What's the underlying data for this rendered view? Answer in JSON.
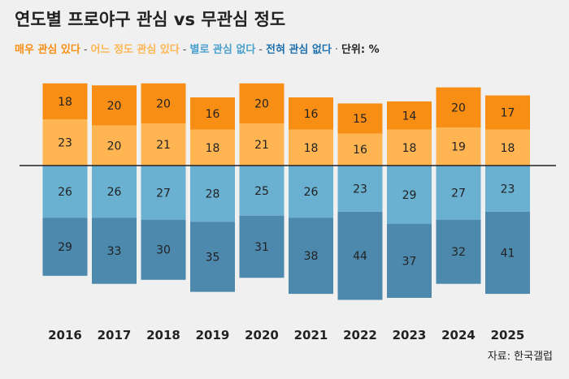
{
  "title": "연도별 프로야구 관심 vs 무관심 정도",
  "legend": {
    "very_interested": "매우 관심 있다",
    "somewhat_interested": "어느 정도 관심 있다",
    "not_very_interested": "별로 관심 없다",
    "not_at_all": "전혀 관심 없다",
    "unit": "단위: %"
  },
  "source": "자료: 한국갤럽",
  "colors": {
    "very_interested": "#f98e14",
    "somewhat_interested": "#ffb552",
    "not_very_interested": "#6ab0d0",
    "not_at_all": "#4d88ad",
    "legend_not_very": "#4aa0cc",
    "legend_not_at_all": "#1e6fae"
  },
  "chart_data": {
    "type": "bar",
    "subtype": "diverging-stacked",
    "categories": [
      "2016",
      "2017",
      "2018",
      "2019",
      "2020",
      "2021",
      "2022",
      "2023",
      "2024",
      "2025"
    ],
    "series": [
      {
        "name": "매우 관심 있다",
        "direction": "up",
        "values": [
          18,
          20,
          20,
          16,
          20,
          16,
          15,
          14,
          20,
          17
        ]
      },
      {
        "name": "어느 정도 관심 있다",
        "direction": "up",
        "values": [
          23,
          20,
          21,
          18,
          21,
          18,
          16,
          18,
          19,
          18
        ]
      },
      {
        "name": "별로 관심 없다",
        "direction": "down",
        "values": [
          26,
          26,
          27,
          28,
          25,
          26,
          23,
          29,
          27,
          23
        ]
      },
      {
        "name": "전혀 관심 없다",
        "direction": "down",
        "values": [
          29,
          33,
          30,
          35,
          31,
          38,
          44,
          37,
          32,
          41
        ]
      }
    ],
    "baseline": 0,
    "unit": "%"
  }
}
